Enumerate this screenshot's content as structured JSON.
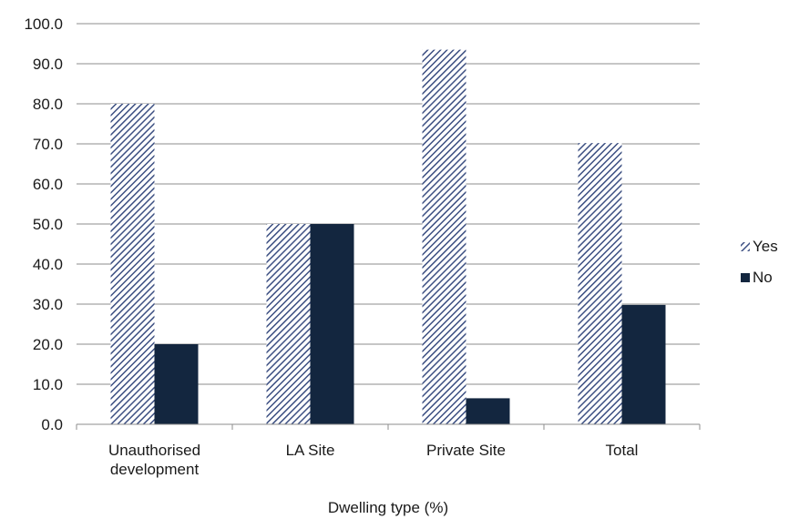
{
  "chart_data": {
    "type": "bar",
    "title": "",
    "xlabel": "Dwelling type (%)",
    "ylabel": "",
    "ylim": [
      0,
      100
    ],
    "ytick_step": 10,
    "categories": [
      [
        "Unauthorised",
        "development"
      ],
      [
        "LA Site"
      ],
      [
        "Private Site"
      ],
      [
        "Total"
      ]
    ],
    "series": [
      {
        "name": "Yes",
        "values": [
          80.0,
          50.0,
          93.5,
          70.2
        ],
        "color": "#3c4f82",
        "pattern": "diagonal-hatch"
      },
      {
        "name": "No",
        "values": [
          20.0,
          50.0,
          6.5,
          29.8
        ],
        "color": "#13263f",
        "pattern": "solid"
      }
    ],
    "grid": true,
    "legend_position": "right"
  }
}
